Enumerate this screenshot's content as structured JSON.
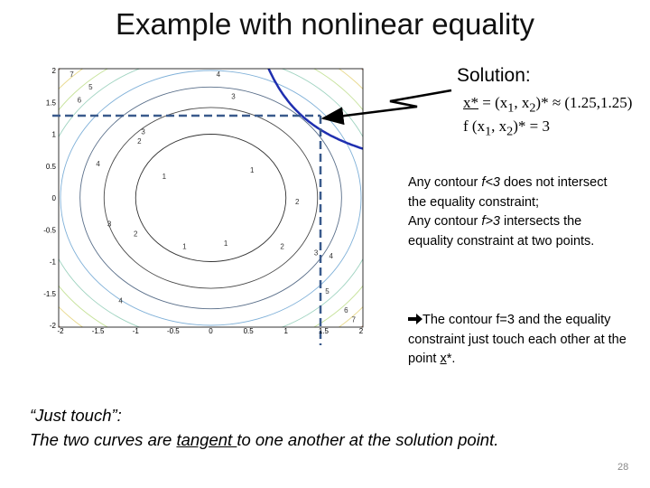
{
  "title": "Example with nonlinear equality",
  "solution": {
    "heading": "Solution:",
    "line1": [
      "x*",
      " = (x",
      "1",
      ", x",
      "2",
      ")* ≈ (1.25,1.25)"
    ],
    "line2": [
      "f (x",
      "1",
      ", x",
      "2",
      ")* = 3"
    ]
  },
  "paragraph": [
    "Any contour ",
    "f<3",
    " does not intersect the equality constraint;",
    "Any contour ",
    "f>3",
    " intersects the equality constraint at two points."
  ],
  "bullet": [
    "The contour f=3 and the equality constraint just touch each other at the point ",
    "x",
    "*."
  ],
  "quote": {
    "heading": "“Just touch”:",
    "parts": [
      "The two curves are ",
      "tangent ",
      "to one another at the solution point."
    ]
  },
  "page_number": "28",
  "plot": {
    "xticks": [
      "-2",
      "-1.5",
      "-1",
      "-0.5",
      "0",
      "0.5",
      "1",
      "1.5",
      "2"
    ],
    "yticks": [
      "2",
      "1.5",
      "1",
      "0.5",
      "0",
      "-0.5",
      "-1",
      "-1.5",
      "-2"
    ],
    "contour_labels": [
      "1",
      "1",
      "1",
      "1",
      "2",
      "2",
      "2",
      "2",
      "3",
      "3",
      "3",
      "3",
      "4",
      "4",
      "4",
      "4",
      "5",
      "5",
      "6",
      "6",
      "7",
      "7"
    ]
  }
}
